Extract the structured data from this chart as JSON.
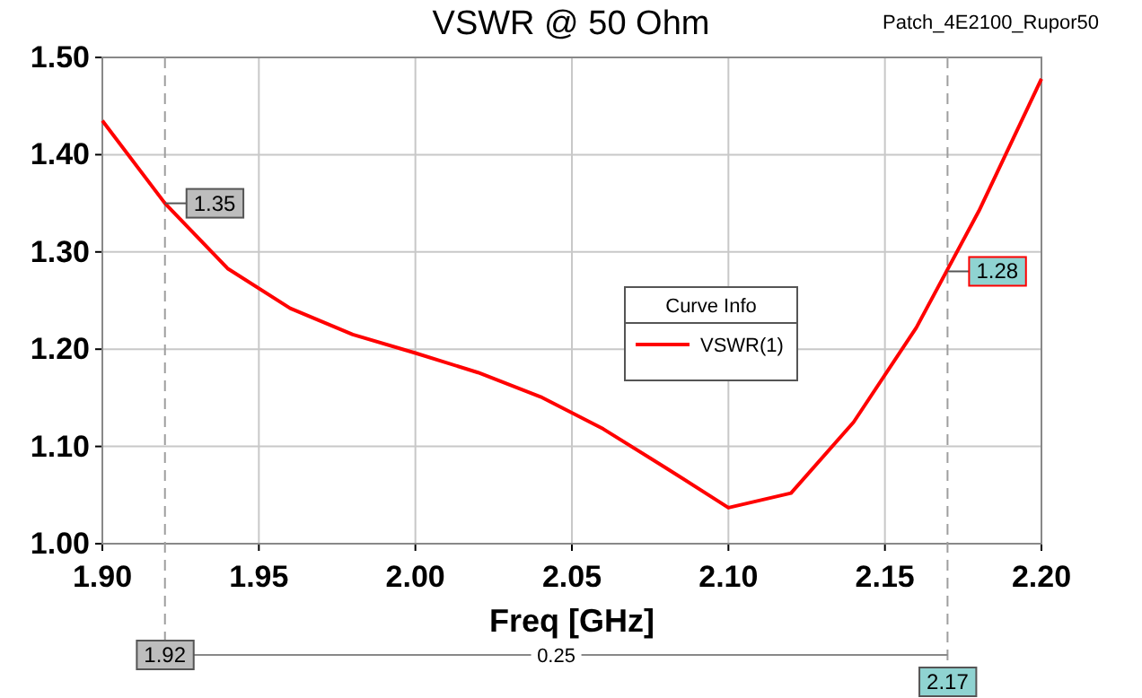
{
  "chart_data": {
    "type": "line",
    "title": "VSWR @ 50 Ohm",
    "subtitle": "Patch_4E2100_Rupor50",
    "xlabel": "Freq [GHz]",
    "legend_title": "Curve Info",
    "legend": "right",
    "grid": true,
    "xlim": [
      1.9,
      2.2
    ],
    "xticks": [
      {
        "value": 1.9,
        "label": "1.90"
      },
      {
        "value": 1.95,
        "label": "1.95"
      },
      {
        "value": 2.0,
        "label": "2.00"
      },
      {
        "value": 2.05,
        "label": "2.05"
      },
      {
        "value": 2.1,
        "label": "2.10"
      },
      {
        "value": 2.15,
        "label": "2.15"
      },
      {
        "value": 2.2,
        "label": "2.20"
      }
    ],
    "ylim": [
      1.0,
      1.5
    ],
    "yticks": [
      {
        "value": 1.0,
        "label": "1.00"
      },
      {
        "value": 1.1,
        "label": "1.10"
      },
      {
        "value": 1.2,
        "label": "1.20"
      },
      {
        "value": 1.3,
        "label": "1.30"
      },
      {
        "value": 1.4,
        "label": "1.40"
      },
      {
        "value": 1.5,
        "label": "1.50"
      }
    ],
    "series": [
      {
        "name": "VSWR(1)",
        "color": "#ff0000",
        "x": [
          1.9,
          1.92,
          1.94,
          1.96,
          1.98,
          2.0,
          2.02,
          2.04,
          2.06,
          2.08,
          2.1,
          2.12,
          2.14,
          2.16,
          2.18,
          2.2
        ],
        "values": [
          1.435,
          1.35,
          1.283,
          1.242,
          1.215,
          1.196,
          1.176,
          1.151,
          1.118,
          1.078,
          1.037,
          1.052,
          1.125,
          1.222,
          1.342,
          1.478
        ]
      }
    ],
    "ref_lines": [
      {
        "axis": "x",
        "value": 1.92,
        "label": "1.92",
        "color": "#9e9e9e",
        "line_style": "dashed"
      },
      {
        "axis": "x",
        "value": 2.17,
        "label": "2.17",
        "color": "#9e9e9e",
        "line_style": "dashed"
      }
    ],
    "annotations": [
      {
        "text": "1.35",
        "x": 1.92,
        "y": 1.35
      },
      {
        "text": "1.28",
        "x": 2.17,
        "y": 1.28
      },
      "0.25"
    ]
  }
}
